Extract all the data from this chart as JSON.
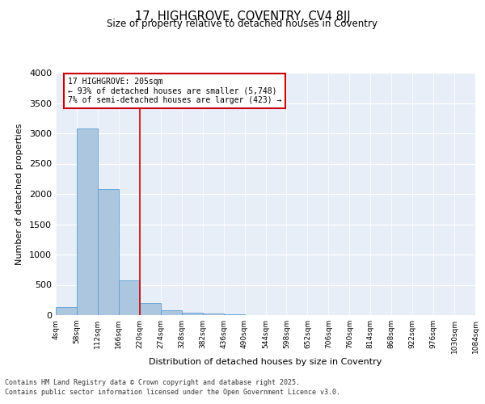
{
  "title": "17, HIGHGROVE, COVENTRY, CV4 8JJ",
  "subtitle": "Size of property relative to detached houses in Coventry",
  "xlabel": "Distribution of detached houses by size in Coventry",
  "ylabel": "Number of detached properties",
  "property_label": "17 HIGHGROVE: 205sqm",
  "pct_smaller": 93,
  "n_smaller": 5748,
  "pct_larger_semi": 7,
  "n_larger_semi": 423,
  "bin_labels": [
    "4sqm",
    "58sqm",
    "112sqm",
    "166sqm",
    "220sqm",
    "274sqm",
    "328sqm",
    "382sqm",
    "436sqm",
    "490sqm",
    "544sqm",
    "598sqm",
    "652sqm",
    "706sqm",
    "760sqm",
    "814sqm",
    "868sqm",
    "922sqm",
    "976sqm",
    "1030sqm",
    "1084sqm"
  ],
  "bar_values": [
    130,
    3075,
    2075,
    575,
    200,
    80,
    45,
    30,
    10,
    5,
    2,
    0,
    0,
    0,
    0,
    0,
    0,
    0,
    0,
    0
  ],
  "bar_color": "#adc6e0",
  "bar_edge_color": "#5a9fd4",
  "vline_color": "#cc0000",
  "vline_position": 3.5,
  "annotation_box_color": "#cc0000",
  "ylim": [
    0,
    4000
  ],
  "yticks": [
    0,
    500,
    1000,
    1500,
    2000,
    2500,
    3000,
    3500,
    4000
  ],
  "background_color": "#e8eef8",
  "footer_line1": "Contains HM Land Registry data © Crown copyright and database right 2025.",
  "footer_line2": "Contains public sector information licensed under the Open Government Licence v3.0."
}
